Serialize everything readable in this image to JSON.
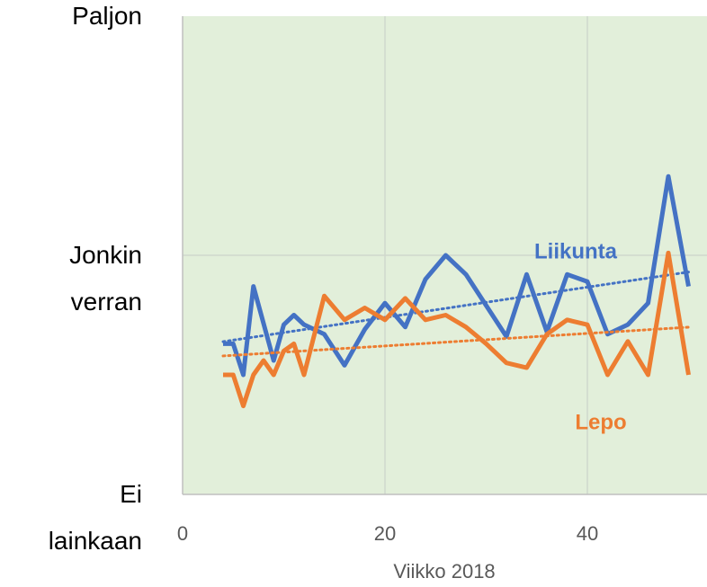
{
  "chart_data": {
    "type": "line",
    "x_label": "Viikko 2018",
    "xlim": [
      0,
      52
    ],
    "xticks": [
      0,
      20,
      40
    ],
    "ylim": [
      0,
      2
    ],
    "yticks": [
      {
        "value": 0,
        "label": "Ei\nlainkaan"
      },
      {
        "value": 1,
        "label": "Jonkin\nverran"
      },
      {
        "value": 2,
        "label": "Paljon"
      }
    ],
    "grid": true,
    "trendline": true,
    "series": [
      {
        "name": "Liikunta",
        "color": "#4472c4",
        "x": [
          4,
          5,
          6,
          7,
          9,
          10,
          11,
          12,
          14,
          16,
          18,
          20,
          22,
          24,
          26,
          28,
          30,
          32,
          34,
          36,
          38,
          40,
          42,
          44,
          46,
          48,
          50
        ],
        "values": [
          0.63,
          0.63,
          0.5,
          0.87,
          0.56,
          0.71,
          0.75,
          0.71,
          0.67,
          0.54,
          0.69,
          0.8,
          0.7,
          0.9,
          1.0,
          0.92,
          0.79,
          0.66,
          0.92,
          0.68,
          0.92,
          0.89,
          0.67,
          0.71,
          0.8,
          1.33,
          0.87
        ]
      },
      {
        "name": "Lepo",
        "color": "#ed7d31",
        "x": [
          4,
          5,
          6,
          7,
          8,
          9,
          10,
          11,
          12,
          14,
          16,
          18,
          20,
          22,
          24,
          26,
          28,
          30,
          32,
          34,
          36,
          38,
          40,
          42,
          44,
          46,
          48,
          50
        ],
        "values": [
          0.5,
          0.5,
          0.37,
          0.5,
          0.56,
          0.5,
          0.6,
          0.63,
          0.5,
          0.83,
          0.73,
          0.78,
          0.73,
          0.82,
          0.73,
          0.75,
          0.7,
          0.63,
          0.55,
          0.53,
          0.67,
          0.73,
          0.71,
          0.5,
          0.64,
          0.5,
          1.01,
          0.5
        ]
      }
    ]
  }
}
